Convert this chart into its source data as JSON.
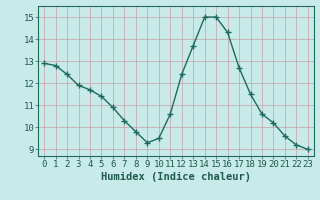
{
  "x": [
    0,
    1,
    2,
    3,
    4,
    5,
    6,
    7,
    8,
    9,
    10,
    11,
    12,
    13,
    14,
    15,
    16,
    17,
    18,
    19,
    20,
    21,
    22,
    23
  ],
  "y": [
    12.9,
    12.8,
    12.4,
    11.9,
    11.7,
    11.4,
    10.9,
    10.3,
    9.8,
    9.3,
    9.5,
    10.6,
    12.4,
    13.7,
    15.0,
    15.0,
    14.3,
    12.7,
    11.5,
    10.6,
    10.2,
    9.6,
    9.2,
    9.0
  ],
  "line_color": "#1e6b5e",
  "marker": "+",
  "marker_size": 4,
  "line_width": 1.0,
  "bg_color": "#c8eae8",
  "grid_color": "#c8a0a8",
  "xlabel": "Humidex (Indice chaleur)",
  "xlabel_fontsize": 7.5,
  "ylabel_ticks": [
    9,
    10,
    11,
    12,
    13,
    14,
    15
  ],
  "xlim": [
    -0.5,
    23.5
  ],
  "ylim": [
    8.7,
    15.5
  ],
  "tick_fontsize": 6.5,
  "tick_color": "#1e5a4e",
  "spine_color": "#1e6b5e"
}
